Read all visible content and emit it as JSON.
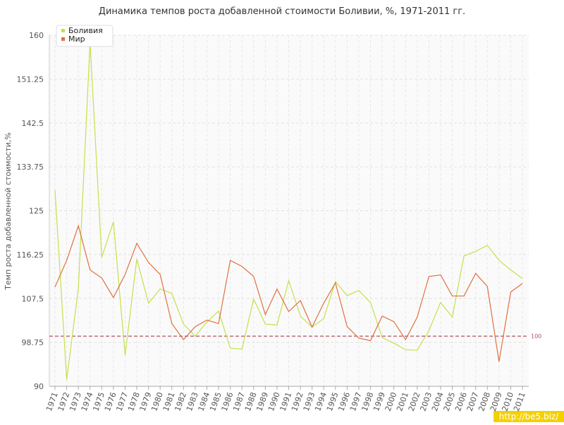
{
  "chart_data": {
    "type": "line",
    "title": "Динамика темпов роста добавленной стоимости Боливии, %, 1971-2011 гг.",
    "y_label": "Темп роста добавленной стоимости,%",
    "categories": [
      "1971",
      "1972",
      "1973",
      "1974",
      "1975",
      "1976",
      "1977",
      "1978",
      "1979",
      "1980",
      "1981",
      "1982",
      "1983",
      "1984",
      "1985",
      "1986",
      "1987",
      "1988",
      "1989",
      "1990",
      "1991",
      "1992",
      "1993",
      "1994",
      "1995",
      "1996",
      "1997",
      "1998",
      "1999",
      "2000",
      "2001",
      "2002",
      "2003",
      "2004",
      "2005",
      "2006",
      "2007",
      "2008",
      "2009",
      "2010",
      "2011"
    ],
    "series": [
      {
        "name": "Боливия",
        "color": "#c5e04a",
        "values": [
          129.1,
          91.3,
          109.5,
          158.6,
          115.7,
          122.8,
          96.2,
          115.4,
          106.6,
          109.4,
          108.5,
          102.4,
          100.0,
          102.8,
          105.0,
          97.6,
          97.4,
          107.4,
          102.4,
          102.2,
          111.1,
          104.0,
          101.8,
          103.5,
          110.9,
          108.1,
          109.1,
          106.7,
          99.7,
          98.6,
          97.3,
          97.2,
          101.1,
          106.7,
          103.8,
          116.0,
          116.9,
          118.1,
          115.1,
          113.2,
          111.5
        ]
      },
      {
        "name": "Мир",
        "color": "#e0703f",
        "values": [
          109.8,
          115.1,
          122.0,
          113.2,
          111.6,
          107.7,
          112.3,
          118.5,
          114.7,
          112.3,
          102.5,
          99.3,
          101.9,
          103.2,
          102.5,
          115.1,
          113.9,
          111.9,
          104.3,
          109.4,
          104.9,
          107.1,
          101.8,
          106.6,
          110.6,
          101.9,
          99.6,
          99.1,
          104.0,
          102.9,
          99.3,
          103.8,
          111.9,
          112.2,
          108.0,
          108.0,
          112.5,
          109.9,
          94.9,
          108.8,
          110.5
        ]
      }
    ],
    "ylim": [
      90,
      160
    ],
    "yticks": [
      90,
      98.75,
      107.5,
      116.25,
      125,
      133.75,
      142.5,
      151.25,
      160
    ],
    "grid": true,
    "reference_line": 100,
    "reference_color": "#b05060",
    "legend": "top-left"
  },
  "watermark": "http://be5.biz/"
}
